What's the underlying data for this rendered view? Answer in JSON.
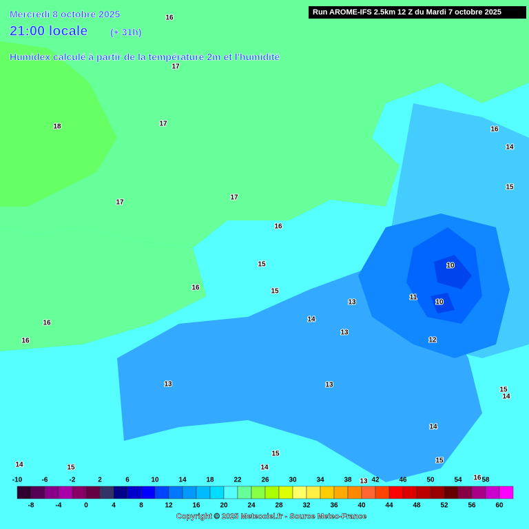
{
  "header": {
    "date": "Mercredi 8 octobre 2025",
    "time": "21:00 locale",
    "lead": "(+ 31h)",
    "description": "Humidex calculé à partir de la température 2m et l'humidité",
    "run": "Run AROME-IFS 2.5km 12 Z du Mardi 7 octobre 2025"
  },
  "contour_labels": [
    16,
    17,
    18,
    17,
    17,
    17,
    16,
    15,
    15,
    16,
    16,
    16,
    13,
    14,
    13,
    11,
    10,
    10,
    12,
    13,
    13,
    14,
    15,
    15,
    14,
    14,
    15,
    16,
    14,
    15,
    15,
    14,
    16,
    13
  ],
  "scale": {
    "colors": [
      "#300030",
      "#550055",
      "#880088",
      "#aa00aa",
      "#880066",
      "#660044",
      "#333366",
      "#000088",
      "#0000cc",
      "#0000ff",
      "#0044ff",
      "#0077ff",
      "#0099ff",
      "#00bbff",
      "#00ddff",
      "#55ffff",
      "#66ff99",
      "#88ff44",
      "#aaff00",
      "#ddff00",
      "#ffff66",
      "#ffee44",
      "#ffcc00",
      "#ffaa00",
      "#ff8800",
      "#ff6633",
      "#ff4400",
      "#ff0000",
      "#dd0000",
      "#bb0000",
      "#990000",
      "#660000",
      "#880044",
      "#aa0088",
      "#cc00cc",
      "#ff00ff"
    ],
    "top_labels": [
      -10,
      -6,
      -2,
      2,
      6,
      10,
      14,
      18,
      22,
      26,
      30,
      34,
      38,
      42,
      46,
      50,
      54,
      58
    ],
    "bottom_labels": [
      -8,
      -4,
      0,
      4,
      8,
      12,
      16,
      20,
      24,
      28,
      32,
      36,
      40,
      44,
      48,
      52,
      56,
      60
    ]
  },
  "footer": {
    "copyright": "Copyright © 2025 Meteociel.fr - Source Meteo-France"
  }
}
